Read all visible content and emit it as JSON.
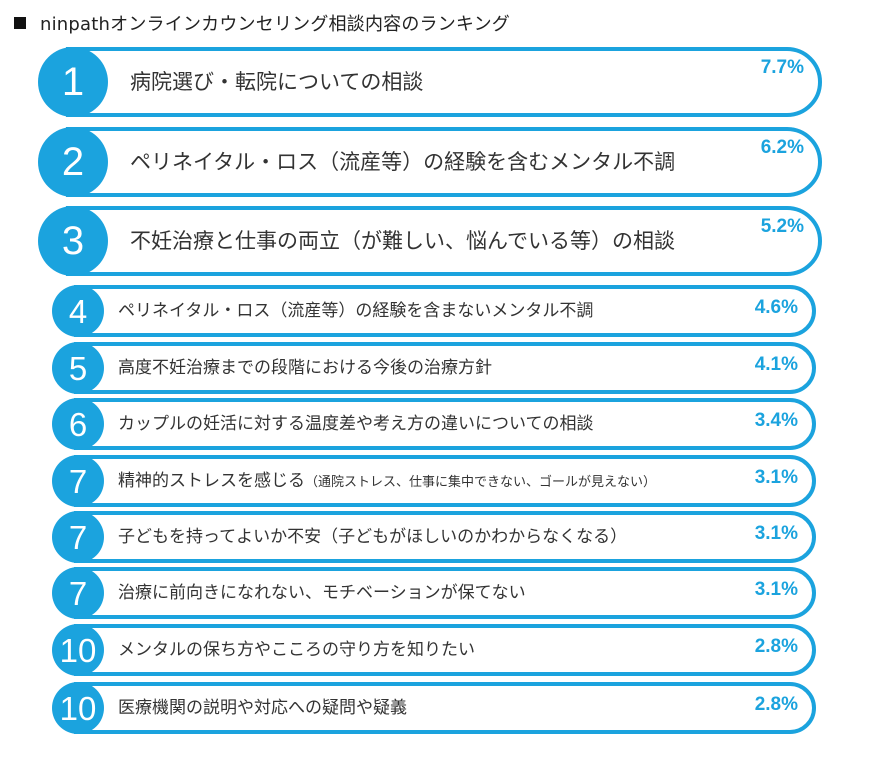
{
  "title": "ninpathオンラインカウンセリング相談内容のランキング",
  "chart_data": {
    "type": "table",
    "title": "ninpathオンラインカウンセリング相談内容のランキング",
    "rows": [
      {
        "rank": "1",
        "label": "病院選び・転院についての相談",
        "note": "",
        "value": 7.7,
        "value_label": "7.7%"
      },
      {
        "rank": "2",
        "label": "ペリネイタル・ロス（流産等）の経験を含むメンタル不調",
        "note": "",
        "value": 6.2,
        "value_label": "6.2%"
      },
      {
        "rank": "3",
        "label": "不妊治療と仕事の両立（が難しい、悩んでいる等）の相談",
        "note": "",
        "value": 5.2,
        "value_label": "5.2%"
      },
      {
        "rank": "4",
        "label": "ペリネイタル・ロス（流産等）の経験を含まないメンタル不調",
        "note": "",
        "value": 4.6,
        "value_label": "4.6%"
      },
      {
        "rank": "5",
        "label": "高度不妊治療までの段階における今後の治療方針",
        "note": "",
        "value": 4.1,
        "value_label": "4.1%"
      },
      {
        "rank": "6",
        "label": "カップルの妊活に対する温度差や考え方の違いについての相談",
        "note": "",
        "value": 3.4,
        "value_label": "3.4%"
      },
      {
        "rank": "7",
        "label": "精神的ストレスを感じる",
        "note": "（通院ストレス、仕事に集中できない、ゴールが見えない）",
        "value": 3.1,
        "value_label": "3.1%"
      },
      {
        "rank": "7",
        "label": "子どもを持ってよいか不安（子どもがほしいのかわからなくなる）",
        "note": "",
        "value": 3.1,
        "value_label": "3.1%"
      },
      {
        "rank": "7",
        "label": "治療に前向きになれない、モチベーションが保てない",
        "note": "",
        "value": 3.1,
        "value_label": "3.1%"
      },
      {
        "rank": "10",
        "label": "メンタルの保ち方やこころの守り方を知りたい",
        "note": "",
        "value": 2.8,
        "value_label": "2.8%"
      },
      {
        "rank": "10",
        "label": "医療機関の説明や対応への疑問や疑義",
        "note": "",
        "value": 2.8,
        "value_label": "2.8%"
      }
    ]
  },
  "colors": {
    "accent": "#1ba3de",
    "text": "#333333"
  }
}
